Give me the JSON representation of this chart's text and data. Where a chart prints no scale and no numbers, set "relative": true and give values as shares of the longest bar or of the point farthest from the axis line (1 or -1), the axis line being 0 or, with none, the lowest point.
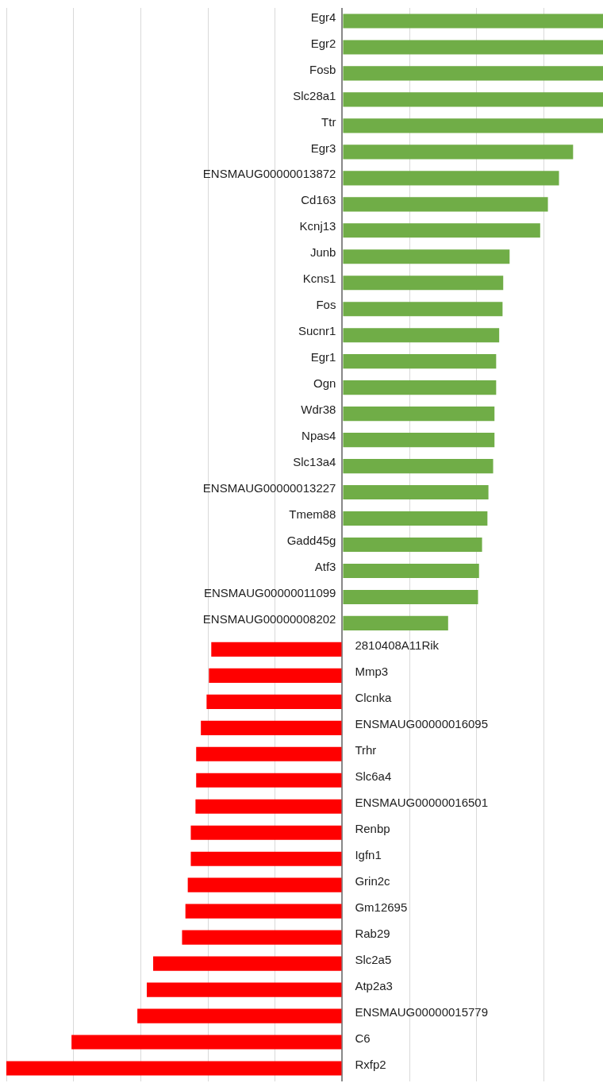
{
  "chart_data": {
    "type": "bar",
    "orientation": "horizontal",
    "relative": true,
    "grid": "x",
    "categories": [
      "Egr4",
      "Egr2",
      "Fosb",
      "Slc28a1",
      "Ttr",
      "Egr3",
      "ENSMAUG00000013872",
      "Cd163",
      "Kcnj13",
      "Junb",
      "Kcns1",
      "Fos",
      "Sucnr1",
      "Egr1",
      "Ogn",
      "Wdr38",
      "Npas4",
      "Slc13a4",
      "ENSMAUG00000013227",
      "Tmem88",
      "Gadd45g",
      "Atf3",
      "ENSMAUG00000011099",
      "ENSMAUG00000008202",
      "2810408A11Rik",
      "Mmp3",
      "Clcnka",
      "ENSMAUG00000016095",
      "Trhr",
      "Slc6a4",
      "ENSMAUG00000016501",
      "Renbp",
      "Igfn1",
      "Grin2c",
      "Gm12695",
      "Rab29",
      "Slc2a5",
      "Atp2a3",
      "ENSMAUG00000015779",
      "C6",
      "Rxfp2"
    ],
    "values": [
      0.776,
      0.776,
      0.776,
      0.776,
      0.776,
      0.687,
      0.645,
      0.612,
      0.589,
      0.498,
      0.479,
      0.477,
      0.467,
      0.458,
      0.458,
      0.453,
      0.453,
      0.449,
      0.435,
      0.432,
      0.416,
      0.407,
      0.404,
      0.315,
      -0.39,
      -0.397,
      -0.404,
      -0.421,
      -0.435,
      -0.435,
      -0.437,
      -0.451,
      -0.451,
      -0.46,
      -0.467,
      -0.477,
      -0.563,
      -0.582,
      -0.61,
      -0.806,
      -1
    ],
    "colors": [
      "#70ad47",
      "#70ad47",
      "#70ad47",
      "#70ad47",
      "#70ad47",
      "#70ad47",
      "#70ad47",
      "#70ad47",
      "#70ad47",
      "#70ad47",
      "#70ad47",
      "#70ad47",
      "#70ad47",
      "#70ad47",
      "#70ad47",
      "#70ad47",
      "#70ad47",
      "#70ad47",
      "#70ad47",
      "#70ad47",
      "#70ad47",
      "#70ad47",
      "#70ad47",
      "#70ad47",
      "#ff0000",
      "#ff0000",
      "#ff0000",
      "#ff0000",
      "#ff0000",
      "#ff0000",
      "#ff0000",
      "#ff0000",
      "#ff0000",
      "#ff0000",
      "#ff0000",
      "#ff0000",
      "#ff0000",
      "#ff0000",
      "#ff0000",
      "#ff0000",
      "#ff0000"
    ]
  }
}
